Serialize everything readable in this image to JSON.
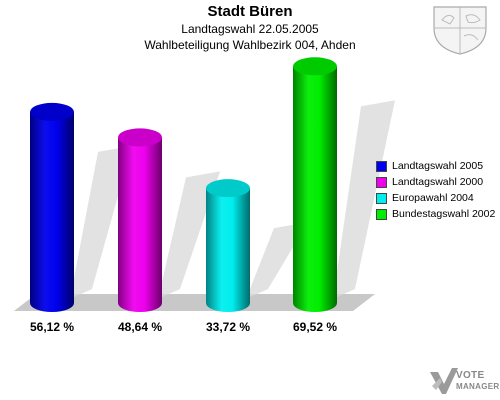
{
  "header": {
    "title": "Stadt Büren",
    "subtitle1": "Landtagswahl 22.05.2005",
    "subtitle2": "Wahlbeteiligung Wahlbezirk 004, Ahden"
  },
  "logo": {
    "line1": "VOTE",
    "line2": "MANAGER"
  },
  "chart_data": {
    "type": "bar",
    "categories": [
      "Landtagswahl 2005",
      "Landtagswahl 2000",
      "Europawahl 2004",
      "Bundestagswahl 2002"
    ],
    "values": [
      56.12,
      48.64,
      33.72,
      69.52
    ],
    "value_labels": [
      "56,12 %",
      "48,64 %",
      "33,72 %",
      "69,52 %"
    ],
    "colors": [
      "#0000ee",
      "#ee00ee",
      "#00eeee",
      "#00ee00"
    ],
    "title": "Stadt Büren",
    "subtitle": "Landtagswahl 22.05.2005 – Wahlbeteiligung Wahlbezirk 004, Ahden",
    "xlabel": "",
    "ylabel": "",
    "ylim": [
      0,
      75
    ],
    "grid": false,
    "legend": "right"
  }
}
